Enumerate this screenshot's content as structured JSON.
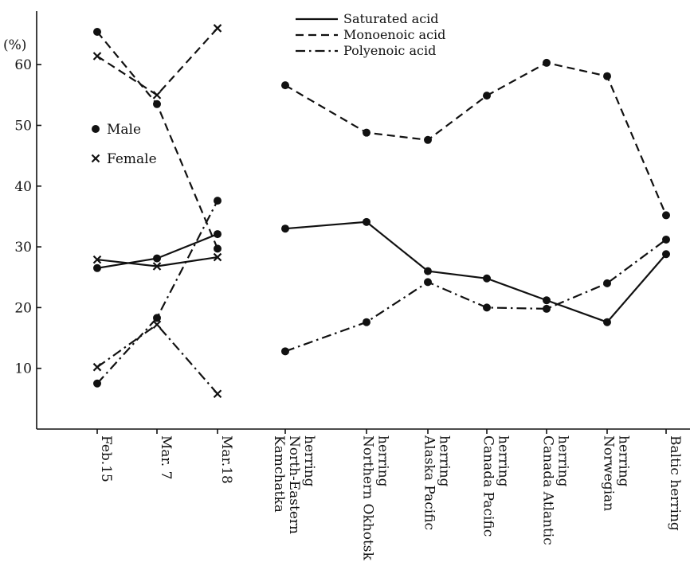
{
  "chart_data": {
    "type": "line",
    "y_unit_label": "(%)",
    "ylim": [
      0,
      70
    ],
    "y_ticks": [
      10,
      20,
      30,
      40,
      50,
      60
    ],
    "grid": false,
    "legend": {
      "placement": "top-center",
      "entries": [
        {
          "name": "Saturated acid",
          "style": "solid"
        },
        {
          "name": "Monoenoic acid",
          "style": "dashed"
        },
        {
          "name": "Polyenoic acid",
          "style": "dash-dot"
        }
      ]
    },
    "sex_legend": {
      "placement": "top-left",
      "entries": [
        {
          "name": "Male",
          "marker": "dot"
        },
        {
          "name": "Female",
          "marker": "cross"
        }
      ]
    },
    "left_panel": {
      "categories": [
        "Feb.15",
        "Mar. 7",
        "Mar.18"
      ],
      "series": [
        {
          "acid": "Saturated acid",
          "sex": "Male",
          "style": "solid",
          "marker": "dot",
          "values": [
            26.5,
            28.1,
            32.1
          ]
        },
        {
          "acid": "Saturated acid",
          "sex": "Female",
          "style": "solid",
          "marker": "cross",
          "values": [
            27.9,
            26.8,
            28.3
          ]
        },
        {
          "acid": "Monoenoic acid",
          "sex": "Male",
          "style": "dashed",
          "marker": "dot",
          "values": [
            65.4,
            53.5,
            29.7
          ]
        },
        {
          "acid": "Monoenoic acid",
          "sex": "Female",
          "style": "dashed",
          "marker": "cross",
          "values": [
            61.4,
            55.0,
            66.0
          ]
        },
        {
          "acid": "Polyenoic acid",
          "sex": "Male",
          "style": "dash-dot",
          "marker": "dot",
          "values": [
            7.5,
            18.3,
            37.6
          ]
        },
        {
          "acid": "Polyenoic acid",
          "sex": "Female",
          "style": "dash-dot",
          "marker": "cross",
          "values": [
            10.2,
            17.2,
            5.8
          ]
        }
      ]
    },
    "right_panel": {
      "categories": [
        [
          "Kamchatka",
          "North-Eastern",
          "herring"
        ],
        [
          "Northern Okhotsk",
          "herring"
        ],
        [
          "Alaska Pacific",
          "herring"
        ],
        [
          "Canada Pacific",
          "herring"
        ],
        [
          "Canada Atlantic",
          "herring"
        ],
        [
          "Norwegian",
          "herring"
        ],
        [
          "Baltic herring"
        ]
      ],
      "series": [
        {
          "acid": "Saturated acid",
          "style": "solid",
          "marker": "dot",
          "values": [
            33.0,
            34.1,
            26.0,
            24.8,
            21.2,
            17.6,
            28.8
          ]
        },
        {
          "acid": "Monoenoic acid",
          "style": "dashed",
          "marker": "dot",
          "values": [
            56.6,
            48.8,
            47.6,
            54.9,
            60.3,
            58.1,
            35.2
          ]
        },
        {
          "acid": "Polyenoic acid",
          "style": "dash-dot",
          "marker": "dot",
          "values": [
            12.8,
            17.6,
            24.2,
            20.0,
            19.8,
            24.0,
            31.2
          ]
        }
      ]
    }
  }
}
